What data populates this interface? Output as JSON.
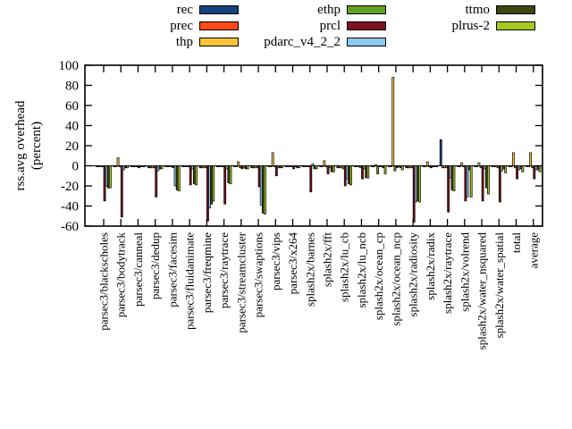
{
  "figure": {
    "ylabel_line1": "rss.avg overhead",
    "ylabel_line2": "(percent)"
  },
  "chart_data": {
    "type": "bar",
    "title": "",
    "xlabel": "",
    "ylabel": "rss.avg overhead (percent)",
    "ylim": [
      -60,
      100
    ],
    "yticks": [
      100,
      80,
      60,
      40,
      20,
      0,
      -20,
      -40,
      -60
    ],
    "grid": false,
    "legend_position": "top",
    "zero_line": true,
    "categories": [
      "parsec3/blackscholes",
      "parsec3/bodytrack",
      "parsec3/canneal",
      "parsec3/dedup",
      "parsec3/facesim",
      "parsec3/fluidanimate",
      "parsec3/freqmine",
      "parsec3/raytrace",
      "parsec3/streamcluster",
      "parsec3/swaptions",
      "parsec3/vips",
      "parsec3/x264",
      "splash2x/barnes",
      "splash2x/fft",
      "splash2x/lu_cb",
      "splash2x/lu_ncb",
      "splash2x/ocean_cp",
      "splash2x/ocean_ncp",
      "splash2x/radiosity",
      "splash2x/radix",
      "splash2x/raytrace",
      "splash2x/volrend",
      "splash2x/water_nsquared",
      "splash2x/water_spatial",
      "total",
      "average"
    ],
    "series": [
      {
        "name": "rec",
        "color": "#17437d",
        "values": [
          -1,
          -1,
          -1,
          -2,
          -1,
          -1,
          -2,
          -1,
          -1,
          -2,
          -1,
          -1,
          -1,
          -1,
          -2,
          -1,
          -1,
          -1,
          -2,
          -1,
          26,
          -1,
          -1,
          -1,
          -1,
          -1
        ]
      },
      {
        "name": "prec",
        "color": "#fb4a14",
        "values": [
          -1,
          -1,
          -1,
          -2,
          -1,
          -1,
          -2,
          -1,
          -1,
          -2,
          -1,
          -1,
          -1,
          -1,
          -2,
          -1,
          -1,
          -1,
          -2,
          -1,
          -2,
          -1,
          -1,
          -1,
          -1,
          -1
        ]
      },
      {
        "name": "thp",
        "color": "#fdc439",
        "values": [
          -1,
          8,
          -1,
          -2,
          -1,
          -1,
          -2,
          -1,
          4,
          -2,
          13,
          -1,
          -1,
          5,
          -2,
          -1,
          1,
          88,
          -2,
          4,
          -2,
          3,
          3,
          -1,
          13,
          13
        ]
      },
      {
        "name": "ethp",
        "color": "#64a121",
        "values": [
          -1,
          -1,
          -1,
          -2,
          -1,
          -1,
          -2,
          -1,
          -2,
          -2,
          -1,
          -1,
          -1,
          -1,
          -3,
          -2,
          -8,
          -5,
          -2,
          -1,
          -2,
          -1,
          -2,
          -2,
          -2,
          -2
        ]
      },
      {
        "name": "prcl",
        "color": "#7d1023",
        "values": [
          -35,
          -51,
          -2,
          -31,
          -2,
          -19,
          -55,
          -38,
          -3,
          -21,
          -10,
          -3,
          -26,
          -8,
          -20,
          -13,
          -1,
          -2,
          -56,
          -2,
          -46,
          -35,
          -35,
          -36,
          -13,
          -13
        ]
      },
      {
        "name": "pdarc_v4_2_2",
        "color": "#8ecbf0",
        "values": [
          -20,
          -4,
          -1,
          -5,
          -20,
          -3,
          -42,
          -3,
          -2,
          -39,
          -2,
          -1,
          2,
          -2,
          -13,
          -3,
          -1,
          -1,
          -36,
          -1,
          -12,
          -31,
          -3,
          -5,
          -4,
          -4
        ]
      },
      {
        "name": "ttmo",
        "color": "#3e470f",
        "values": [
          -22,
          -2,
          -1,
          -3,
          -24,
          -18,
          -38,
          -17,
          -3,
          -47,
          -2,
          -2,
          -3,
          -6,
          -18,
          -12,
          -2,
          -2,
          -35,
          -1,
          -24,
          -4,
          -22,
          -3,
          -3,
          -4
        ]
      },
      {
        "name": "plrus-2",
        "color": "#a7c821",
        "values": [
          -22,
          -2,
          -1,
          -3,
          -25,
          -19,
          -35,
          -18,
          -3,
          -48,
          -2,
          -2,
          -3,
          -6,
          -19,
          -12,
          -8,
          -4,
          -36,
          -1,
          -25,
          -31,
          -28,
          -7,
          -6,
          -6
        ]
      }
    ],
    "legend_columns": [
      [
        "rec",
        "prec",
        "thp"
      ],
      [
        "ethp",
        "prcl",
        "pdarc_v4_2_2"
      ],
      [
        "ttmo",
        "plrus-2"
      ]
    ]
  }
}
